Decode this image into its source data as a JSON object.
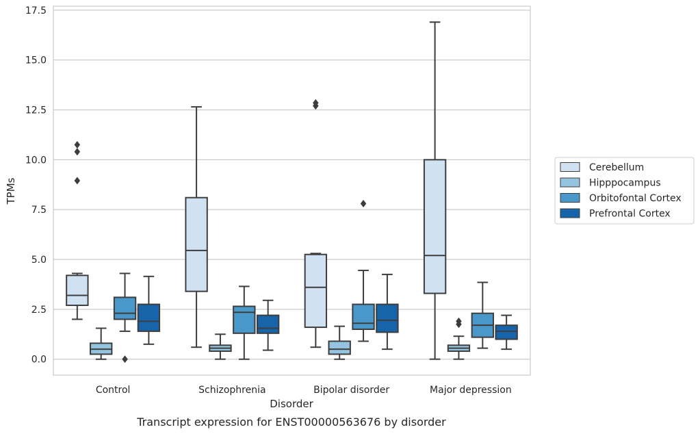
{
  "chart_data": {
    "type": "box",
    "title": "Transcript expression for ENST00000563676 by disorder",
    "xlabel": "Disorder",
    "ylabel": "TPMs",
    "ylim": [
      -0.8,
      17.7
    ],
    "yticks": [
      "0.0",
      "2.5",
      "5.0",
      "7.5",
      "10.0",
      "12.5",
      "15.0",
      "17.5"
    ],
    "grid": true,
    "legend_position": "right",
    "categories": [
      "Control",
      "Schizophrenia",
      "Bipolar disorder",
      "Major depression"
    ],
    "series": [
      {
        "name": "Cerebellum",
        "color": "#d0e1f2",
        "boxes": [
          {
            "whisker_low": 2.0,
            "q1": 2.7,
            "median": 3.2,
            "q3": 4.2,
            "whisker_high": 4.3,
            "outliers": [
              8.95,
              10.4,
              10.75
            ]
          },
          {
            "whisker_low": 0.6,
            "q1": 3.4,
            "median": 5.45,
            "q3": 8.1,
            "whisker_high": 12.65,
            "outliers": []
          },
          {
            "whisker_low": 0.6,
            "q1": 1.6,
            "median": 3.6,
            "q3": 5.25,
            "whisker_high": 5.3,
            "outliers": [
              12.7,
              12.85
            ]
          },
          {
            "whisker_low": 0.0,
            "q1": 3.3,
            "median": 5.2,
            "q3": 10.0,
            "whisker_high": 16.9,
            "outliers": []
          }
        ]
      },
      {
        "name": "Hipppocampus",
        "color": "#94c4df",
        "boxes": [
          {
            "whisker_low": 0.0,
            "q1": 0.25,
            "median": 0.5,
            "q3": 0.8,
            "whisker_high": 1.55,
            "outliers": []
          },
          {
            "whisker_low": 0.0,
            "q1": 0.4,
            "median": 0.55,
            "q3": 0.7,
            "whisker_high": 1.25,
            "outliers": []
          },
          {
            "whisker_low": 0.0,
            "q1": 0.25,
            "median": 0.5,
            "q3": 0.9,
            "whisker_high": 1.65,
            "outliers": []
          },
          {
            "whisker_low": 0.0,
            "q1": 0.4,
            "median": 0.55,
            "q3": 0.7,
            "whisker_high": 1.15,
            "outliers": [
              1.75,
              1.9
            ]
          }
        ]
      },
      {
        "name": "Orbitofontal Cortex",
        "color": "#4a98c9",
        "boxes": [
          {
            "whisker_low": 1.4,
            "q1": 2.0,
            "median": 2.3,
            "q3": 3.1,
            "whisker_high": 4.3,
            "outliers": [
              0.0
            ]
          },
          {
            "whisker_low": 0.0,
            "q1": 1.3,
            "median": 2.35,
            "q3": 2.65,
            "whisker_high": 3.65,
            "outliers": []
          },
          {
            "whisker_low": 0.9,
            "q1": 1.5,
            "median": 1.8,
            "q3": 2.75,
            "whisker_high": 4.45,
            "outliers": [
              7.8
            ]
          },
          {
            "whisker_low": 0.55,
            "q1": 1.1,
            "median": 1.7,
            "q3": 2.3,
            "whisker_high": 3.85,
            "outliers": []
          }
        ]
      },
      {
        "name": "Prefrontal Cortex",
        "color": "#1764ab",
        "boxes": [
          {
            "whisker_low": 0.75,
            "q1": 1.4,
            "median": 1.9,
            "q3": 2.75,
            "whisker_high": 4.15,
            "outliers": []
          },
          {
            "whisker_low": 0.45,
            "q1": 1.3,
            "median": 1.55,
            "q3": 2.2,
            "whisker_high": 2.95,
            "outliers": []
          },
          {
            "whisker_low": 0.5,
            "q1": 1.35,
            "median": 1.95,
            "q3": 2.75,
            "whisker_high": 4.25,
            "outliers": []
          },
          {
            "whisker_low": 0.5,
            "q1": 1.0,
            "median": 1.4,
            "q3": 1.7,
            "whisker_high": 2.2,
            "outliers": []
          }
        ]
      }
    ]
  }
}
